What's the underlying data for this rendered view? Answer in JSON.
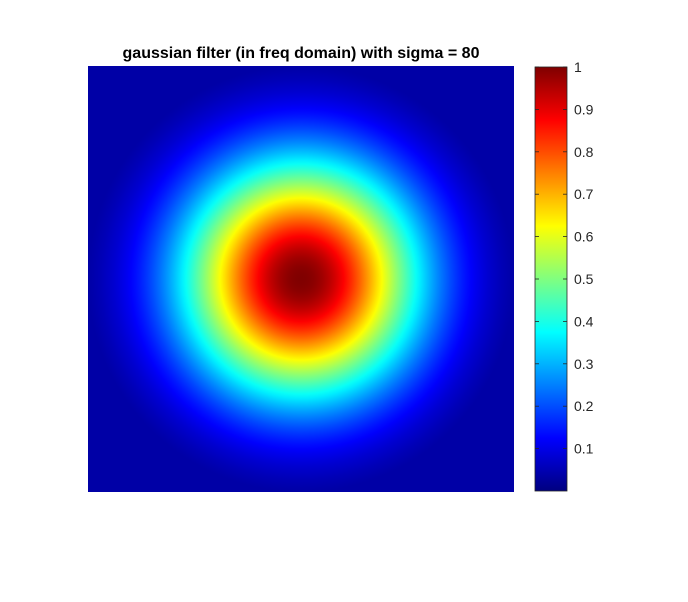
{
  "chart_data": {
    "type": "heatmap",
    "title": "gaussian filter (in freq domain) with sigma = 80",
    "colormap": "jet",
    "colormap_stops": [
      "#00008f",
      "#0000ff",
      "#00ffff",
      "#ffff00",
      "#ff0000",
      "#800000"
    ],
    "peak_value": 1,
    "peak_position": "center",
    "sigma": 80,
    "colorbar": {
      "range": [
        0,
        1
      ],
      "ticks": [
        0.1,
        0.2,
        0.3,
        0.4,
        0.5,
        0.6,
        0.7,
        0.8,
        0.9,
        1
      ],
      "tick_labels": [
        "0.1",
        "0.2",
        "0.3",
        "0.4",
        "0.5",
        "0.6",
        "0.7",
        "0.8",
        "0.9",
        "1"
      ],
      "position": "right"
    },
    "axes_visible": false
  }
}
